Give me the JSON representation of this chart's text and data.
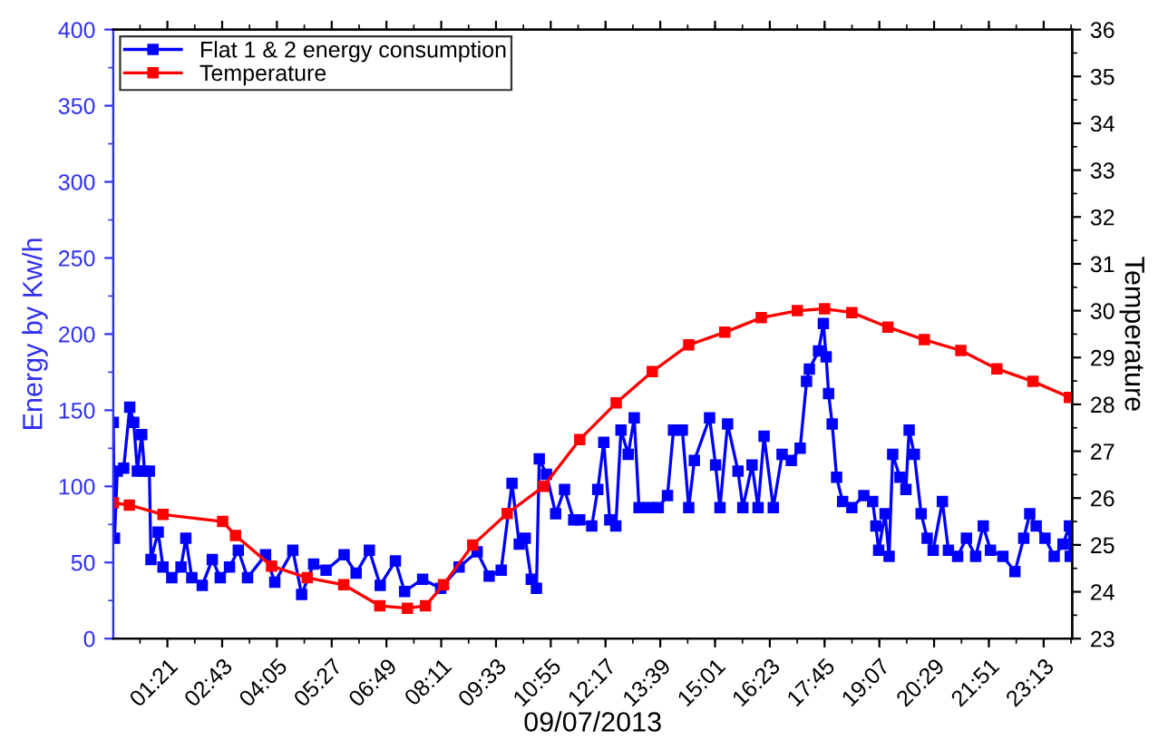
{
  "chart_data": {
    "type": "line",
    "xlabel": "09/07/2013",
    "ylabel": "Energy by Kw/h",
    "y2label": "Temperature",
    "xlim": [
      0,
      23.93
    ],
    "ylim": [
      0,
      400
    ],
    "y2lim": [
      23,
      36
    ],
    "xticks": [
      {
        "value": 1.35,
        "label": "01:21"
      },
      {
        "value": 2.7167,
        "label": "02:43"
      },
      {
        "value": 4.0833,
        "label": "04:05"
      },
      {
        "value": 5.45,
        "label": "05:27"
      },
      {
        "value": 6.8167,
        "label": "06:49"
      },
      {
        "value": 8.1833,
        "label": "08:11"
      },
      {
        "value": 9.55,
        "label": "09:33"
      },
      {
        "value": 10.9167,
        "label": "10:55"
      },
      {
        "value": 12.2833,
        "label": "12:17"
      },
      {
        "value": 13.65,
        "label": "13:39"
      },
      {
        "value": 15.0167,
        "label": "15:01"
      },
      {
        "value": 16.3833,
        "label": "16:23"
      },
      {
        "value": 17.75,
        "label": "17:45"
      },
      {
        "value": 19.1167,
        "label": "19:07"
      },
      {
        "value": 20.4833,
        "label": "20:29"
      },
      {
        "value": 21.85,
        "label": "21:51"
      },
      {
        "value": 23.2167,
        "label": "23:13"
      }
    ],
    "yticks": [
      0,
      50,
      100,
      150,
      200,
      250,
      300,
      350,
      400
    ],
    "y2ticks": [
      23,
      24,
      25,
      26,
      27,
      28,
      29,
      30,
      31,
      32,
      33,
      34,
      35,
      36
    ],
    "legend": "top left",
    "grid": false,
    "marker": "square",
    "line_style": "solid",
    "series": [
      {
        "name": "Flat 1 & 2 energy consumption",
        "color": "#0000ff",
        "x": [
          0,
          0.03,
          0.1,
          0.26,
          0.41,
          0.51,
          0.6,
          0.71,
          0.78,
          0.9,
          0.94,
          1.12,
          1.24,
          1.46,
          1.69,
          1.81,
          1.96,
          2.22,
          2.47,
          2.67,
          2.9,
          3.12,
          3.35,
          3.8,
          4.03,
          4.48,
          4.7,
          5.0,
          5.31,
          5.76,
          6.06,
          6.39,
          6.66,
          7.04,
          7.27,
          7.72,
          8.17,
          8.63,
          9.08,
          9.38,
          9.68,
          9.95,
          10.13,
          10.28,
          10.43,
          10.56,
          10.63,
          10.81,
          11.04,
          11.26,
          11.49,
          11.64,
          11.94,
          12.09,
          12.24,
          12.39,
          12.54,
          12.67,
          12.85,
          13.0,
          13.12,
          13.37,
          13.6,
          13.83,
          13.98,
          14.2,
          14.36,
          14.5,
          14.88,
          15.03,
          15.14,
          15.33,
          15.59,
          15.71,
          15.94,
          16.09,
          16.24,
          16.47,
          16.69,
          16.92,
          17.14,
          17.3,
          17.37,
          17.6,
          17.72,
          17.79,
          17.85,
          17.94,
          18.05,
          18.2,
          18.43,
          18.73,
          18.95,
          19.03,
          19.1,
          19.26,
          19.36,
          19.45,
          19.63,
          19.78,
          19.86,
          19.99,
          20.16,
          20.31,
          20.46,
          20.69,
          20.84,
          21.07,
          21.29,
          21.52,
          21.71,
          21.89,
          22.2,
          22.5,
          22.72,
          22.87,
          23.03,
          23.25,
          23.48,
          23.7,
          23.86,
          23.88
        ],
        "values": [
          142,
          66,
          110,
          112,
          152,
          142,
          110,
          134,
          110,
          110,
          52,
          70,
          47,
          40,
          47,
          66,
          40,
          35,
          52,
          40,
          47,
          58,
          40,
          55,
          37,
          58,
          29,
          49,
          45,
          55,
          43,
          58,
          35,
          51,
          31,
          39,
          33,
          47,
          57,
          41,
          45,
          102,
          62,
          66,
          39,
          33,
          118,
          108,
          82,
          98,
          78,
          78,
          74,
          98,
          129,
          78,
          74,
          137,
          121,
          145,
          86,
          86,
          86,
          94,
          137,
          137,
          86,
          117,
          145,
          114,
          86,
          141,
          110,
          86,
          114,
          86,
          133,
          86,
          121,
          117,
          125,
          169,
          177,
          189,
          207,
          185,
          161,
          141,
          106,
          90,
          86,
          94,
          90,
          74,
          58,
          82,
          54,
          121,
          106,
          98,
          137,
          121,
          82,
          66,
          58,
          90,
          58,
          54,
          66,
          54,
          74,
          58,
          54,
          44,
          66,
          82,
          74,
          66,
          54,
          62,
          74,
          54
        ]
      },
      {
        "name": "Temperature",
        "color": "#ff0000",
        "axis": "y2",
        "x": [
          0,
          0.4,
          1.24,
          2.73,
          3.05,
          3.95,
          4.84,
          5.75,
          6.65,
          7.34,
          7.79,
          8.24,
          8.97,
          9.83,
          10.74,
          11.64,
          12.55,
          13.45,
          14.36,
          15.26,
          16.17,
          17.07,
          17.75,
          18.43,
          19.33,
          20.24,
          21.15,
          22.05,
          22.95,
          23.86
        ],
        "values": [
          25.9,
          25.85,
          25.65,
          25.5,
          25.2,
          24.55,
          24.3,
          24.15,
          23.7,
          23.65,
          23.7,
          24.15,
          25.0,
          25.67,
          26.25,
          27.25,
          28.03,
          28.7,
          29.27,
          29.54,
          29.85,
          30.0,
          30.04,
          29.96,
          29.65,
          29.38,
          29.15,
          28.76,
          28.49,
          28.15
        ]
      }
    ]
  }
}
